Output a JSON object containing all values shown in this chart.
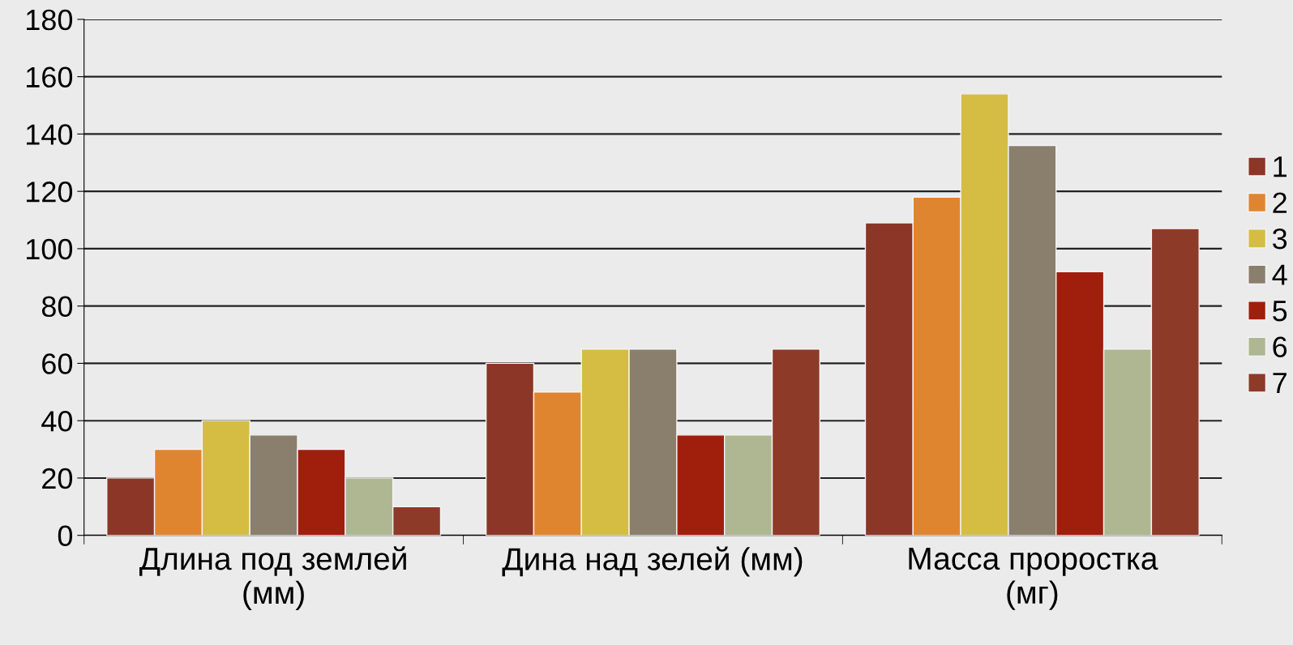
{
  "chart_data": {
    "type": "bar",
    "categories": [
      "Длина под землей\n(мм)",
      "Дина над зелей (мм)",
      "Масса проростка\n(мг)"
    ],
    "series": [
      {
        "name": "1",
        "color": "#8b3626",
        "values": [
          20,
          60,
          109
        ]
      },
      {
        "name": "2",
        "color": "#e0852f",
        "values": [
          30,
          50,
          118
        ]
      },
      {
        "name": "3",
        "color": "#d4bd42",
        "values": [
          40,
          65,
          154
        ]
      },
      {
        "name": "4",
        "color": "#8a7f6c",
        "values": [
          35,
          65,
          136
        ]
      },
      {
        "name": "5",
        "color": "#a01e0c",
        "values": [
          30,
          35,
          92
        ]
      },
      {
        "name": "6",
        "color": "#aeb792",
        "values": [
          20,
          35,
          65
        ]
      },
      {
        "name": "7",
        "color": "#8d3a28",
        "values": [
          10,
          65,
          107
        ]
      }
    ],
    "ylim": [
      0,
      180
    ],
    "yticks": [
      0,
      20,
      40,
      60,
      80,
      100,
      120,
      140,
      160,
      180
    ],
    "grid": "y",
    "legend": "right"
  }
}
